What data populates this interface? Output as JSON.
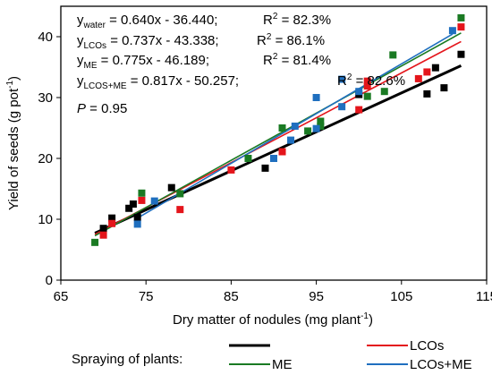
{
  "chart_data": {
    "type": "scatter",
    "xlabel": "Dry matter of nodules (mg plant",
    "xlabel_sup": "-1",
    "xlabel_end": ")",
    "ylabel": "Yield of seeds (g pot",
    "ylabel_sup": "-1",
    "ylabel_end": ")",
    "xlim": [
      65,
      115
    ],
    "ylim": [
      0,
      45
    ],
    "x_ticks": [
      "65",
      "75",
      "85",
      "95",
      "105",
      "115"
    ],
    "y_ticks": [
      "0",
      "10",
      "20",
      "30",
      "40"
    ],
    "legend_title": "Spraying of plants:",
    "series": [
      {
        "name": "",
        "color": "#000000",
        "slope": 0.64,
        "intercept": -36.44,
        "fit_x": [
          69,
          112
        ],
        "points": [
          [
            70,
            8.5
          ],
          [
            71,
            10.2
          ],
          [
            73,
            11.8
          ],
          [
            73.5,
            12.5
          ],
          [
            74,
            10.3
          ],
          [
            78,
            15.2
          ],
          [
            89,
            18.4
          ],
          [
            100,
            30.5
          ],
          [
            108,
            30.6
          ],
          [
            109,
            34.9
          ],
          [
            110,
            31.6
          ],
          [
            112,
            37.1
          ]
        ]
      },
      {
        "name": "LCOs",
        "color": "#e4151b",
        "slope": 0.737,
        "intercept": -43.338,
        "fit_x": [
          69,
          112
        ],
        "points": [
          [
            70,
            7.4
          ],
          [
            71,
            9.3
          ],
          [
            74.5,
            13.1
          ],
          [
            79,
            11.6
          ],
          [
            85,
            18.1
          ],
          [
            91,
            21.1
          ],
          [
            100,
            28.0
          ],
          [
            101,
            31.9
          ],
          [
            101,
            32.7
          ],
          [
            107,
            33.1
          ],
          [
            108,
            34.2
          ],
          [
            112,
            41.6
          ]
        ]
      },
      {
        "name": "ME",
        "color": "#1a7a23",
        "slope": 0.775,
        "intercept": -46.189,
        "fit_x": [
          69,
          112
        ],
        "points": [
          [
            69,
            6.2
          ],
          [
            74.5,
            14.3
          ],
          [
            79,
            14.2
          ],
          [
            87,
            20.0
          ],
          [
            91,
            25.0
          ],
          [
            94,
            24.5
          ],
          [
            95.5,
            25.3
          ],
          [
            95.5,
            26.1
          ],
          [
            101,
            30.2
          ],
          [
            103,
            31.0
          ],
          [
            104,
            37.0
          ],
          [
            112,
            43.1
          ]
        ]
      },
      {
        "name": "LCOs+ME",
        "color": "#1f6fbf",
        "slope": 0.817,
        "intercept": -50.257,
        "fit_x": [
          74,
          111
        ],
        "points": [
          [
            74,
            9.2
          ],
          [
            76,
            13.0
          ],
          [
            90,
            20.0
          ],
          [
            92,
            23.0
          ],
          [
            92.5,
            25.3
          ],
          [
            95,
            24.9
          ],
          [
            95,
            30.0
          ],
          [
            98,
            28.5
          ],
          [
            98,
            33.0
          ],
          [
            100,
            31.0
          ],
          [
            111,
            41.0
          ]
        ]
      }
    ],
    "annotations": {
      "eq_water_pre": "y",
      "eq_water_sub": "water",
      "eq_water_post": " = 0.640x - 36.440;",
      "eq_water_r2": "R",
      "eq_water_r2v": " = 82.3%",
      "eq_lcos_pre": "y",
      "eq_lcos_sub": "LCOs",
      "eq_lcos_post": " = 0.737x - 43.338;",
      "eq_lcos_r2": "R",
      "eq_lcos_r2v": " = 86.1%",
      "eq_me_pre": "y",
      "eq_me_sub": "ME",
      "eq_me_post": " = 0.775x - 46.189;",
      "eq_me_r2": "R",
      "eq_me_r2v": " = 81.4%",
      "eq_both_pre": "y",
      "eq_both_sub": "LCOS+ME",
      "eq_both_post": " = 0.817x - 50.257;",
      "eq_both_r2": "R",
      "eq_both_r2v": " = 82.6%",
      "r2_sup": "2",
      "p_label": "P",
      "p_value": " = 0.95"
    }
  }
}
